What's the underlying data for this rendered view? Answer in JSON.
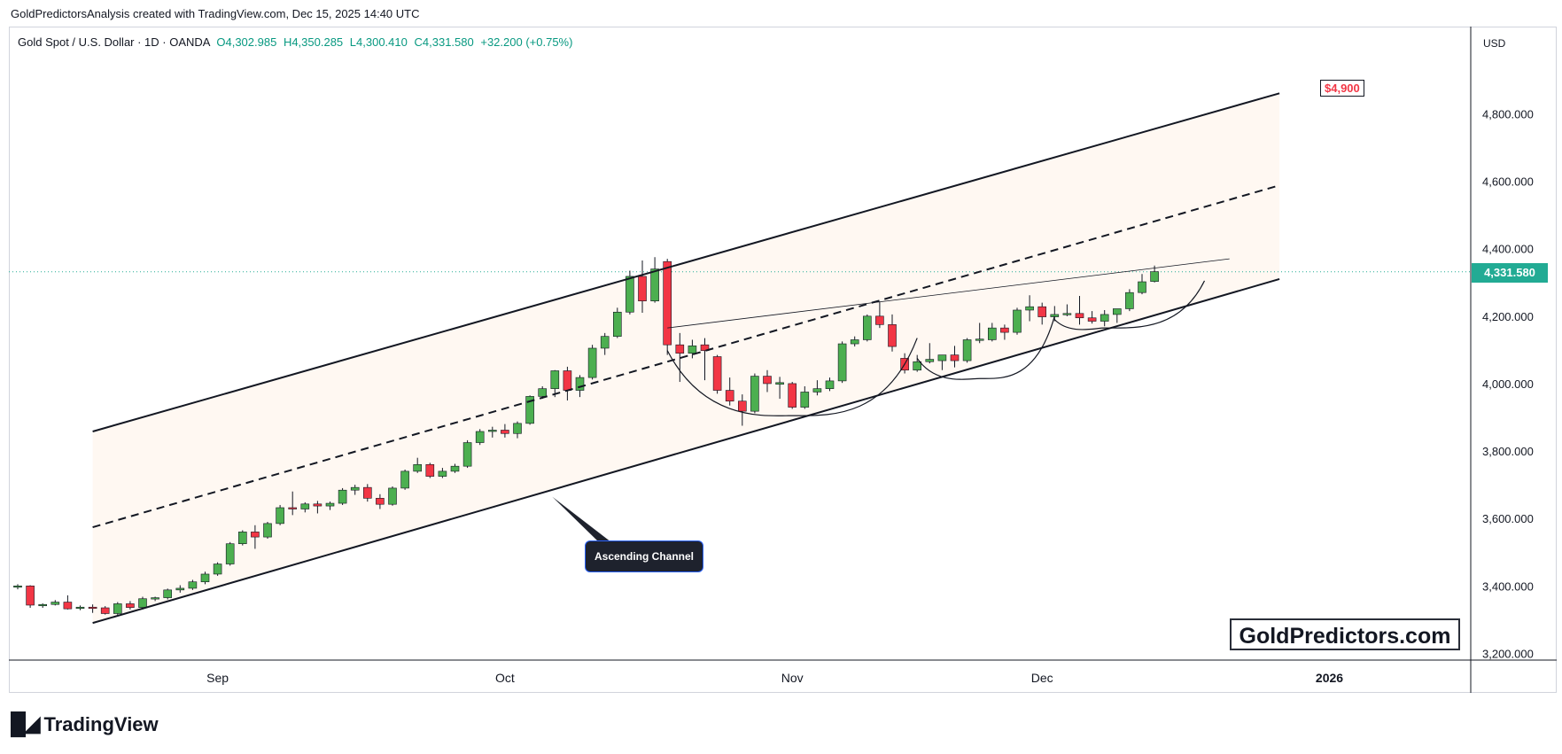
{
  "header": {
    "attribution": "GoldPredictorsAnalysis created with TradingView.com, Dec 15, 2025 14:40 UTC"
  },
  "legend": {
    "symbol": "Gold Spot / U.S. Dollar · 1D · OANDA",
    "open": "O4,302.985",
    "high": "H4,350.285",
    "low": "L4,300.410",
    "close": "C4,331.580",
    "change": "+32.200 (+0.75%)"
  },
  "price_axis": {
    "currency": "USD",
    "last_price_label": "4,331.580"
  },
  "annotations": {
    "target": "$4,900",
    "channel_label": "Ascending Channel",
    "watermark": "GoldPredictors.com"
  },
  "footer": {
    "brand": "TradingView"
  },
  "colors": {
    "up": "#4caf50",
    "down": "#f23645",
    "last_price": "#22ab94",
    "channel_fill": "#fff8f2"
  },
  "chart_data": {
    "type": "candlestick",
    "symbol": "Gold Spot / U.S. Dollar",
    "interval": "1D",
    "currency": "USD",
    "ylim": [
      3180,
      4980
    ],
    "y_ticks": [
      3200,
      3400,
      3600,
      3800,
      4000,
      4200,
      4400,
      4600,
      4800
    ],
    "y_tick_labels": [
      "3,200.000",
      "3,400.000",
      "3,600.000",
      "3,800.000",
      "4,000.000",
      "4,200.000",
      "4,400.000",
      "4,600.000",
      "4,800.000"
    ],
    "x_ticks": [
      {
        "label": "Sep",
        "index": 16
      },
      {
        "label": "Oct",
        "index": 39
      },
      {
        "label": "Nov",
        "index": 62
      },
      {
        "label": "Dec",
        "index": 82
      },
      {
        "label": "2026",
        "index": 105
      }
    ],
    "last_price": 4331.58,
    "candles": [
      [
        3399,
        3405,
        3390,
        3400
      ],
      [
        3400,
        3402,
        3335,
        3343
      ],
      [
        3341,
        3348,
        3335,
        3345
      ],
      [
        3345,
        3358,
        3342,
        3352
      ],
      [
        3352,
        3372,
        3330,
        3332
      ],
      [
        3335,
        3342,
        3328,
        3337
      ],
      [
        3337,
        3345,
        3320,
        3335
      ],
      [
        3335,
        3340,
        3315,
        3318
      ],
      [
        3318,
        3352,
        3314,
        3347
      ],
      [
        3347,
        3355,
        3330,
        3336
      ],
      [
        3336,
        3368,
        3330,
        3362
      ],
      [
        3362,
        3368,
        3355,
        3365
      ],
      [
        3365,
        3392,
        3360,
        3388
      ],
      [
        3388,
        3402,
        3380,
        3393
      ],
      [
        3393,
        3418,
        3388,
        3412
      ],
      [
        3412,
        3442,
        3405,
        3435
      ],
      [
        3435,
        3470,
        3430,
        3465
      ],
      [
        3465,
        3530,
        3460,
        3525
      ],
      [
        3525,
        3565,
        3520,
        3560
      ],
      [
        3560,
        3580,
        3510,
        3545
      ],
      [
        3545,
        3590,
        3540,
        3585
      ],
      [
        3585,
        3640,
        3580,
        3632
      ],
      [
        3632,
        3680,
        3610,
        3628
      ],
      [
        3628,
        3648,
        3618,
        3643
      ],
      [
        3643,
        3652,
        3615,
        3637
      ],
      [
        3637,
        3650,
        3625,
        3645
      ],
      [
        3645,
        3690,
        3640,
        3684
      ],
      [
        3684,
        3700,
        3670,
        3692
      ],
      [
        3692,
        3702,
        3650,
        3660
      ],
      [
        3660,
        3672,
        3628,
        3642
      ],
      [
        3642,
        3695,
        3638,
        3690
      ],
      [
        3690,
        3745,
        3685,
        3740
      ],
      [
        3740,
        3780,
        3735,
        3760
      ],
      [
        3760,
        3765,
        3720,
        3725
      ],
      [
        3725,
        3750,
        3720,
        3740
      ],
      [
        3740,
        3762,
        3735,
        3755
      ],
      [
        3755,
        3832,
        3750,
        3825
      ],
      [
        3825,
        3865,
        3818,
        3858
      ],
      [
        3858,
        3872,
        3840,
        3862
      ],
      [
        3862,
        3880,
        3840,
        3852
      ],
      [
        3852,
        3888,
        3838,
        3882
      ],
      [
        3882,
        3965,
        3878,
        3962
      ],
      [
        3962,
        3992,
        3955,
        3985
      ],
      [
        3985,
        4040,
        3960,
        4038
      ],
      [
        4038,
        4050,
        3950,
        3980
      ],
      [
        3980,
        4025,
        3960,
        4018
      ],
      [
        4018,
        4115,
        4012,
        4105
      ],
      [
        4105,
        4150,
        4085,
        4140
      ],
      [
        4140,
        4225,
        4135,
        4212
      ],
      [
        4212,
        4335,
        4205,
        4318
      ],
      [
        4318,
        4365,
        4210,
        4245
      ],
      [
        4245,
        4375,
        4240,
        4340
      ],
      [
        4362,
        4370,
        4085,
        4115
      ],
      [
        4115,
        4150,
        4005,
        4090
      ],
      [
        4090,
        4130,
        4075,
        4112
      ],
      [
        4115,
        4135,
        4010,
        4098
      ],
      [
        4080,
        4085,
        3970,
        3980
      ],
      [
        3980,
        4018,
        3935,
        3948
      ],
      [
        3948,
        3968,
        3875,
        3918
      ],
      [
        3918,
        4030,
        3912,
        4022
      ],
      [
        4022,
        4040,
        3975,
        4000
      ],
      [
        3998,
        4020,
        3955,
        4003
      ],
      [
        4000,
        4005,
        3925,
        3930
      ],
      [
        3930,
        3992,
        3925,
        3975
      ],
      [
        3975,
        4010,
        3965,
        3985
      ],
      [
        3985,
        4018,
        3978,
        4008
      ],
      [
        4008,
        4125,
        4002,
        4118
      ],
      [
        4118,
        4140,
        4110,
        4130
      ],
      [
        4130,
        4205,
        4125,
        4200
      ],
      [
        4200,
        4242,
        4165,
        4175
      ],
      [
        4175,
        4205,
        4095,
        4110
      ],
      [
        4075,
        4090,
        4030,
        4040
      ],
      [
        4040,
        4085,
        4035,
        4065
      ],
      [
        4065,
        4120,
        4060,
        4072
      ],
      [
        4068,
        4085,
        4040,
        4085
      ],
      [
        4085,
        4112,
        4048,
        4068
      ],
      [
        4068,
        4135,
        4062,
        4130
      ],
      [
        4130,
        4180,
        4120,
        4132
      ],
      [
        4130,
        4180,
        4125,
        4165
      ],
      [
        4165,
        4175,
        4130,
        4152
      ],
      [
        4152,
        4225,
        4145,
        4218
      ],
      [
        4218,
        4262,
        4185,
        4228
      ],
      [
        4228,
        4240,
        4175,
        4198
      ],
      [
        4198,
        4230,
        4185,
        4205
      ],
      [
        4205,
        4235,
        4200,
        4208
      ],
      [
        4208,
        4260,
        4175,
        4195
      ],
      [
        4195,
        4215,
        4178,
        4185
      ],
      [
        4185,
        4218,
        4170,
        4205
      ],
      [
        4205,
        4222,
        4180,
        4222
      ],
      [
        4222,
        4280,
        4215,
        4270
      ],
      [
        4270,
        4325,
        4265,
        4302
      ],
      [
        4303,
        4350,
        4300,
        4332
      ]
    ],
    "lines": {
      "channel_upper": [
        [
          6,
          3858
        ],
        [
          101,
          4861
        ]
      ],
      "channel_lower": [
        [
          6,
          3290
        ],
        [
          101,
          4310
        ]
      ],
      "channel_mid": [
        [
          6,
          3574
        ],
        [
          101,
          4588
        ]
      ],
      "neckline": [
        [
          52,
          4165
        ],
        [
          97,
          4370
        ]
      ]
    },
    "arcs": [
      {
        "start": [
          52,
          4098
        ],
        "bottom": [
          62,
          3905
        ],
        "end": [
          72,
          4135
        ]
      },
      {
        "start": [
          72,
          4075
        ],
        "bottom": [
          77,
          4015
        ],
        "end": [
          83,
          4200
        ]
      },
      {
        "start": [
          83,
          4190
        ],
        "bottom": [
          87,
          4165
        ],
        "end": [
          95,
          4305
        ]
      }
    ]
  }
}
